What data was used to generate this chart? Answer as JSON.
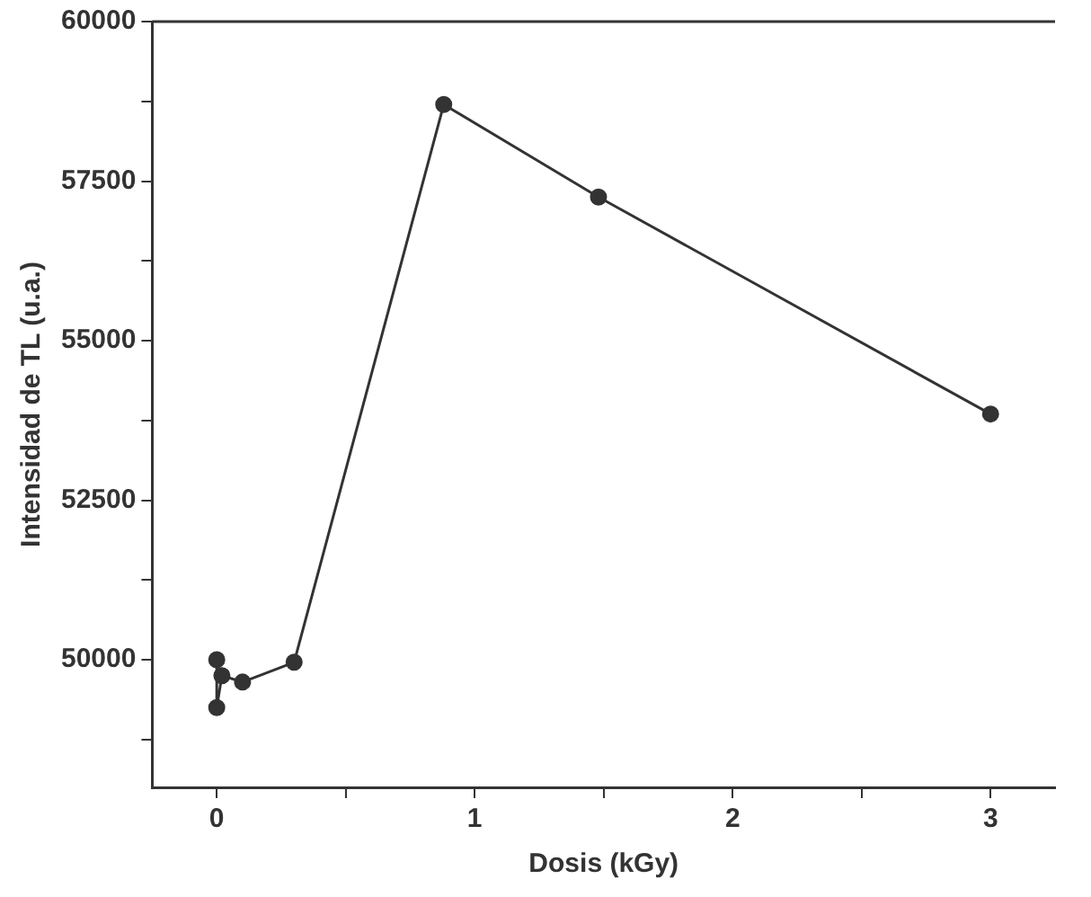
{
  "chart_data": {
    "type": "line",
    "xlabel": "Dosis (kGy)",
    "ylabel": "Intensidad de TL (u.a.)",
    "x": [
      0,
      0,
      0.02,
      0.1,
      0.3,
      0.88,
      1.48,
      3.0
    ],
    "series": [
      {
        "color": "#333333",
        "values": [
          50000,
          49250,
          49750,
          49650,
          49960,
          58700,
          57250,
          53850
        ]
      }
    ],
    "xlim": [
      -0.25,
      3.25
    ],
    "xticks": [
      0,
      {
        "value": 0.5,
        "label": null
      },
      1,
      {
        "value": 1.5,
        "label": null
      },
      2,
      {
        "value": 2.5,
        "label": null
      },
      3
    ],
    "ylim": [
      48000,
      60000
    ],
    "yticks": [
      {
        "value": 48750,
        "label": null
      },
      50000,
      {
        "value": 51250,
        "label": null
      },
      52500,
      {
        "value": 53750,
        "label": null
      },
      55000,
      {
        "value": 56250,
        "label": null
      },
      57500,
      {
        "value": 58750,
        "label": null
      },
      60000
    ],
    "grid": false,
    "legend": false,
    "marker": "circle",
    "line_style": "solid"
  }
}
